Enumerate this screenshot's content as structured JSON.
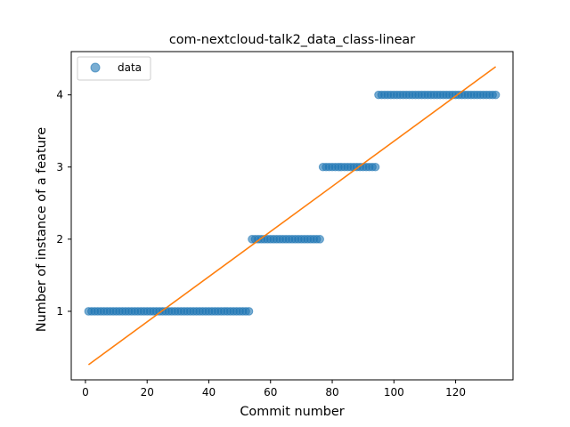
{
  "chart_data": {
    "type": "scatter",
    "title": "com-nextcloud-talk2_data_class-linear",
    "xlabel": "Commit number",
    "ylabel": "Number of instance of a feature",
    "xlim": [
      -4.6,
      138.6
    ],
    "ylim": [
      0.05,
      4.6
    ],
    "xticks": [
      0,
      20,
      40,
      60,
      80,
      100,
      120
    ],
    "yticks": [
      1,
      2,
      3,
      4
    ],
    "legend": {
      "position": "top-left",
      "entries": [
        "data"
      ]
    },
    "grid": false,
    "series": [
      {
        "name": "data",
        "kind": "scatter",
        "color": "#1f77b4",
        "alpha": 0.6,
        "segments": [
          {
            "x_start": 1,
            "x_end": 53,
            "y": 1
          },
          {
            "x_start": 54,
            "x_end": 76,
            "y": 2
          },
          {
            "x_start": 77,
            "x_end": 94,
            "y": 3
          },
          {
            "x_start": 95,
            "x_end": 133,
            "y": 4
          }
        ]
      },
      {
        "kind": "line",
        "color": "#ff7f0e",
        "x": [
          1,
          133
        ],
        "y": [
          0.26,
          4.39
        ]
      }
    ]
  }
}
